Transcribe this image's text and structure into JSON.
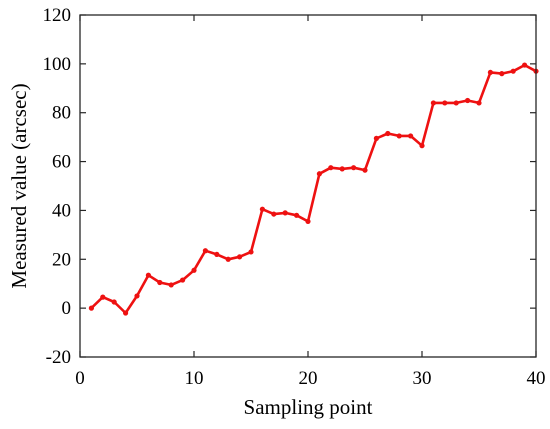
{
  "chart_data": {
    "type": "line",
    "title": "",
    "xlabel": "Sampling point",
    "ylabel": "Measured value (arcsec)",
    "xlim": [
      0,
      40
    ],
    "ylim": [
      -20,
      120
    ],
    "xticks": [
      0,
      10,
      20,
      30,
      40
    ],
    "yticks": [
      -20,
      0,
      20,
      40,
      60,
      80,
      100,
      120
    ],
    "grid": false,
    "legend": "none",
    "colors": {
      "series": "#ee1111",
      "axes": "#262626"
    },
    "series": [
      {
        "x": [
          1,
          2,
          3,
          4,
          5,
          6,
          7,
          8,
          9,
          10,
          11,
          12,
          13,
          14,
          15,
          16,
          17,
          18,
          19,
          20,
          21,
          22,
          23,
          24,
          25,
          26,
          27,
          28,
          29,
          30,
          31,
          32,
          33,
          34,
          35,
          36,
          37,
          38,
          39,
          40
        ],
        "values": [
          0,
          4.5,
          2.5,
          -2,
          5,
          13.5,
          10.5,
          9.5,
          11.5,
          15.5,
          23.5,
          22,
          20,
          21,
          23,
          40.5,
          38.5,
          39,
          38,
          35.5,
          55,
          57.5,
          57,
          57.5,
          56.5,
          69.5,
          71.5,
          70.5,
          70.5,
          66.5,
          84,
          84,
          84,
          85,
          84,
          96.5,
          96,
          97,
          99.5,
          97
        ]
      }
    ]
  }
}
